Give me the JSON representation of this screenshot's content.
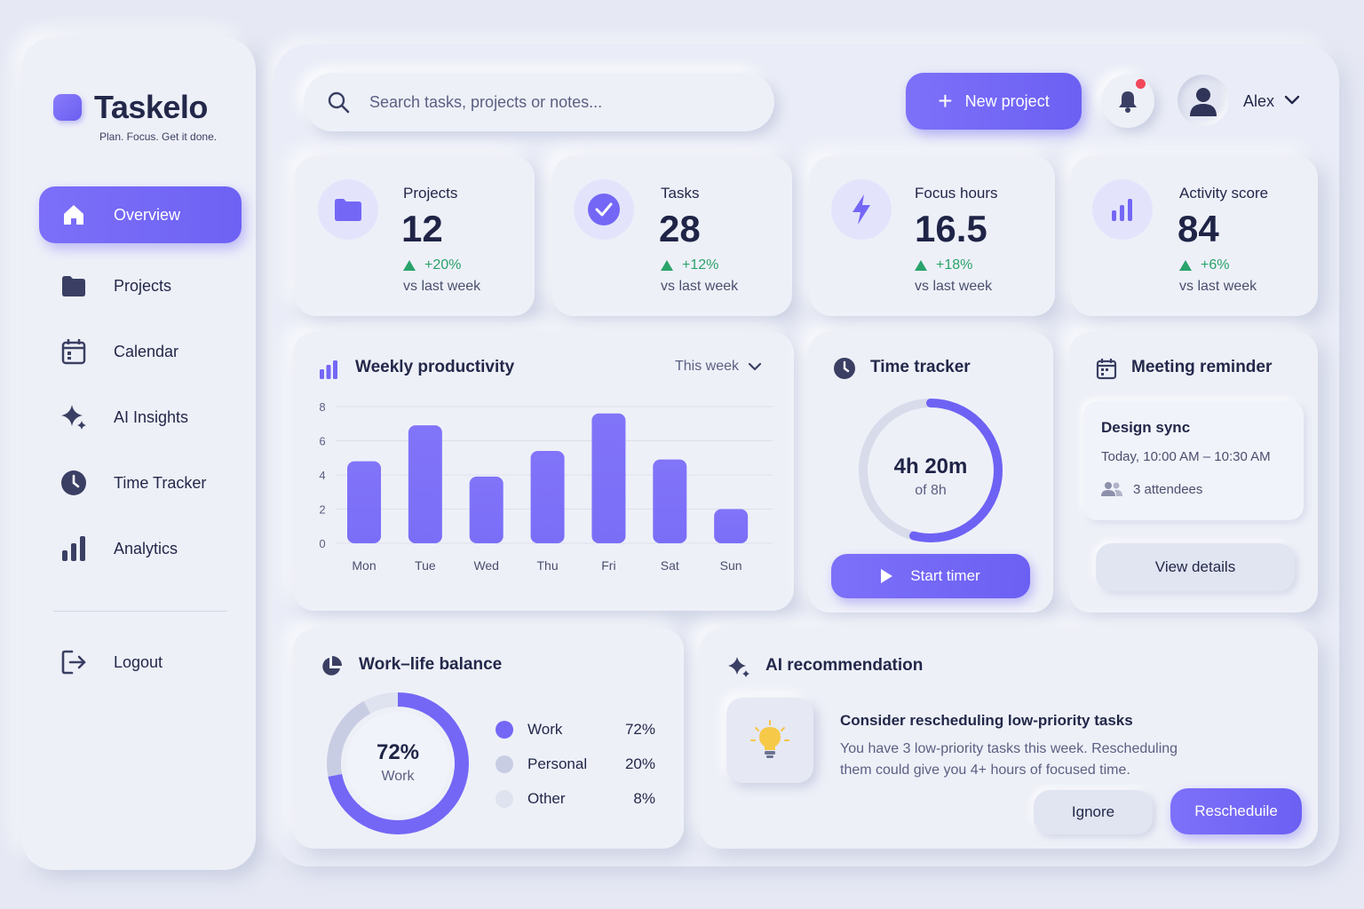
{
  "brand": {
    "name": "Taskelo",
    "tagline": "Plan. Focus. Get it done."
  },
  "sidebar": {
    "items": [
      {
        "label": "Overview",
        "icon": "home-icon",
        "active": true
      },
      {
        "label": "Projects",
        "icon": "folder-icon"
      },
      {
        "label": "Calendar",
        "icon": "calendar-icon"
      },
      {
        "label": "AI Insights",
        "icon": "sparkle-icon"
      },
      {
        "label": "Time Tracker",
        "icon": "clock-icon"
      },
      {
        "label": "Analytics",
        "icon": "bar-chart-icon"
      }
    ],
    "logout": {
      "label": "Logout",
      "icon": "logout-icon"
    }
  },
  "header": {
    "search_placeholder": "Search tasks, projects or notes...",
    "new_project_label": "New project",
    "user_name": "Alex",
    "has_notification": true
  },
  "stats": [
    {
      "label": "Projects",
      "value": "12",
      "delta": "+20%",
      "sub": "vs last week",
      "icon": "folder-icon"
    },
    {
      "label": "Tasks",
      "value": "28",
      "delta": "+12%",
      "sub": "vs last week",
      "icon": "check-circle-icon"
    },
    {
      "label": "Focus hours",
      "value": "16.5",
      "delta": "+18%",
      "sub": "vs last week",
      "icon": "lightning-icon"
    },
    {
      "label": "Activity score",
      "value": "84",
      "delta": "+6%",
      "sub": "vs last week",
      "icon": "bar-chart-icon"
    }
  ],
  "productivity": {
    "title": "Weekly productivity",
    "filter": "This week"
  },
  "chart_data": {
    "type": "bar",
    "categories": [
      "Mon",
      "Tue",
      "Wed",
      "Thu",
      "Fri",
      "Sat",
      "Sun"
    ],
    "values": [
      4.8,
      6.9,
      3.9,
      5.4,
      7.6,
      4.9,
      2.0
    ],
    "yticks": [
      0,
      2,
      4,
      6,
      8
    ],
    "ylim": [
      0,
      8
    ],
    "bar_color": "#7a6ef7"
  },
  "tracker": {
    "title": "Time tracker",
    "elapsed": "4h 20m",
    "goal": "of 8h",
    "progress": 0.54,
    "start_label": "Start timer"
  },
  "meeting": {
    "title": "Meeting reminder",
    "name": "Design sync",
    "time": "Today, 10:00 AM – 10:30 AM",
    "attendees": "3 attendees",
    "view_label": "View details"
  },
  "balance": {
    "title": "Work–life balance",
    "center_value": "72%",
    "center_label": "Work",
    "segments": [
      {
        "label": "Work",
        "value": "72%",
        "fraction": 0.72,
        "color": "#7467f6"
      },
      {
        "label": "Personal",
        "value": "20%",
        "fraction": 0.2,
        "color": "#c9cde3"
      },
      {
        "label": "Other",
        "value": "8%",
        "fraction": 0.08,
        "color": "#dfe2ef"
      }
    ]
  },
  "ai": {
    "title": "AI recommendation",
    "headline": "Consider rescheduling low-priority tasks",
    "body": "You have 3 low-priority tasks this week. Rescheduling them could give you 4+ hours of focused time.",
    "ignore_label": "Ignore",
    "reschedule_label": "Rescheduile"
  },
  "colors": {
    "accent": "#6e62f4",
    "positive": "#2aa36b",
    "notification": "#f0485a",
    "text": "#23284a"
  }
}
